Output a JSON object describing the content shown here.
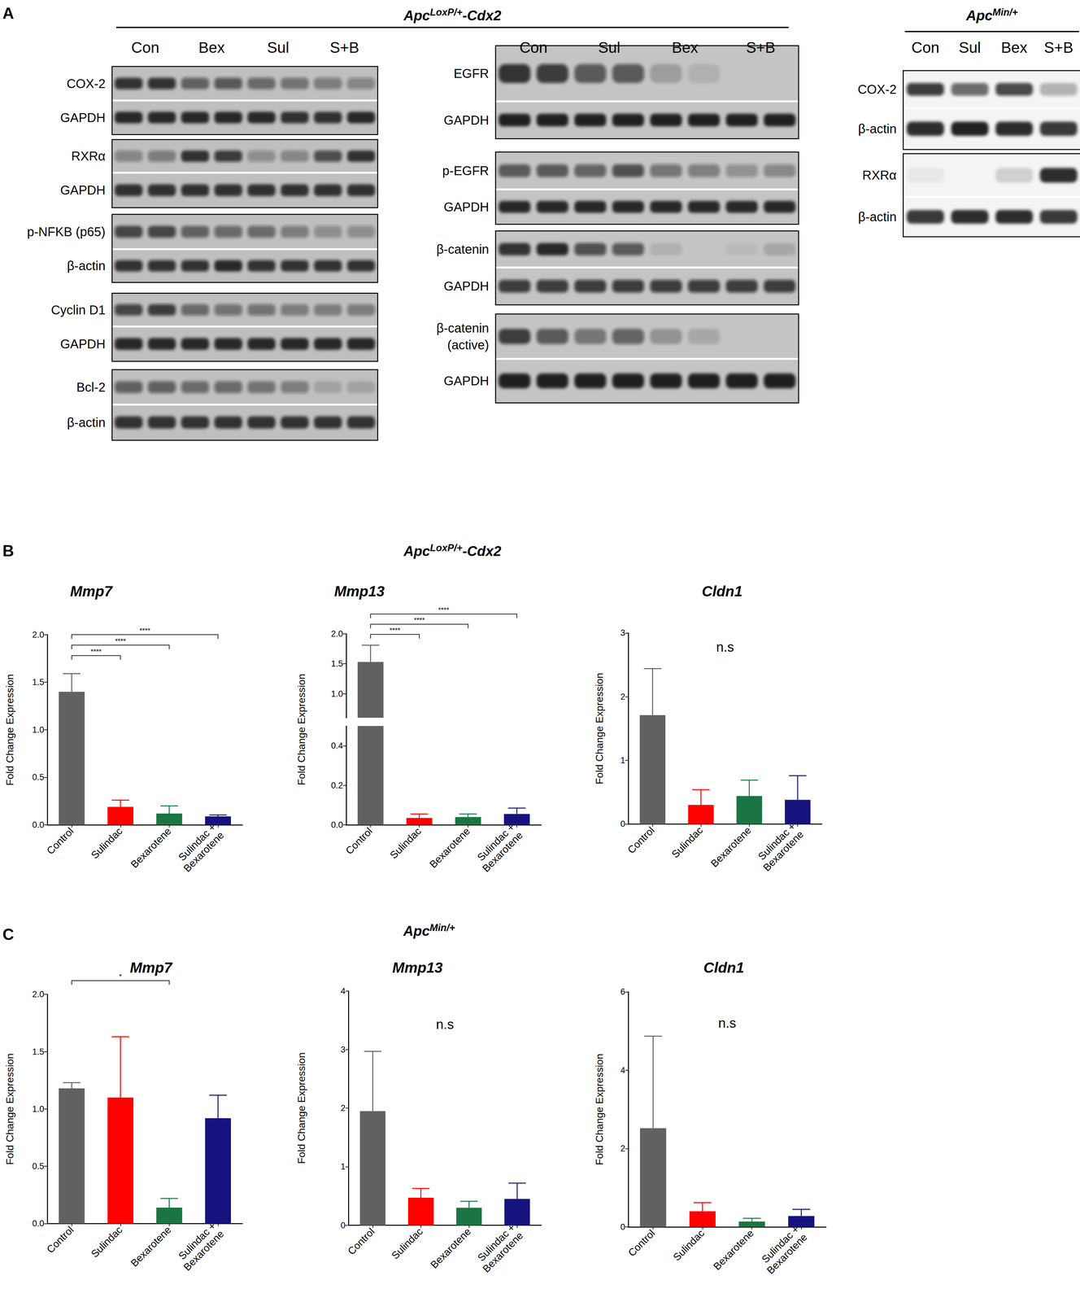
{
  "panel_a": {
    "label": "A",
    "groups": [
      {
        "header": {
          "gene": "Apc",
          "superscript": "LoxP/+",
          "suffix": "-Cdx2"
        },
        "columns": [
          {
            "lanes": [
              "Con",
              "Bex",
              "Sul",
              "S+B"
            ],
            "blots": [
              {
                "rows": [
                  {
                    "label": "COX-2",
                    "intensities": [
                      0.8,
                      0.8,
                      0.55,
                      0.6,
                      0.5,
                      0.45,
                      0.4,
                      0.35
                    ]
                  },
                  {
                    "label": "GAPDH",
                    "intensities": [
                      0.9,
                      0.9,
                      0.9,
                      0.9,
                      0.9,
                      0.85,
                      0.85,
                      0.9
                    ]
                  }
                ]
              },
              {
                "rows": [
                  {
                    "label": "RXRα",
                    "intensities": [
                      0.35,
                      0.4,
                      0.85,
                      0.75,
                      0.3,
                      0.35,
                      0.65,
                      0.85
                    ]
                  },
                  {
                    "label": "GAPDH",
                    "intensities": [
                      0.85,
                      0.85,
                      0.85,
                      0.85,
                      0.85,
                      0.85,
                      0.85,
                      0.85
                    ]
                  }
                ]
              },
              {
                "rows": [
                  {
                    "label": "p-NFKB (p65)",
                    "intensities": [
                      0.7,
                      0.7,
                      0.55,
                      0.5,
                      0.5,
                      0.4,
                      0.3,
                      0.3
                    ]
                  },
                  {
                    "label": "β-actin",
                    "intensities": [
                      0.8,
                      0.8,
                      0.8,
                      0.9,
                      0.8,
                      0.8,
                      0.8,
                      0.8
                    ]
                  }
                ]
              },
              {
                "rows": [
                  {
                    "label": "Cyclin D1",
                    "intensities": [
                      0.7,
                      0.75,
                      0.5,
                      0.45,
                      0.45,
                      0.4,
                      0.4,
                      0.4
                    ]
                  },
                  {
                    "label": "GAPDH",
                    "intensities": [
                      0.9,
                      0.9,
                      0.9,
                      0.9,
                      0.9,
                      0.9,
                      0.9,
                      0.9
                    ]
                  }
                ]
              },
              {
                "rows": [
                  {
                    "label": "Bcl-2",
                    "intensities": [
                      0.55,
                      0.55,
                      0.5,
                      0.5,
                      0.45,
                      0.4,
                      0.15,
                      0.15
                    ]
                  },
                  {
                    "label": "β-actin",
                    "intensities": [
                      0.85,
                      0.85,
                      0.85,
                      0.85,
                      0.85,
                      0.85,
                      0.85,
                      0.85
                    ]
                  }
                ]
              }
            ]
          },
          {
            "lanes": [
              "Con",
              "Sul",
              "Bex",
              "S+B"
            ],
            "blots": [
              {
                "rows": [
                  {
                    "label": "EGFR",
                    "intensities": [
                      0.8,
                      0.75,
                      0.6,
                      0.6,
                      0.2,
                      0.1,
                      0,
                      0
                    ]
                  },
                  {
                    "label": "GAPDH",
                    "intensities": [
                      0.95,
                      0.95,
                      0.95,
                      0.95,
                      0.95,
                      0.95,
                      0.95,
                      0.95
                    ]
                  }
                ]
              },
              {
                "rows": [
                  {
                    "label": "p-EGFR",
                    "intensities": [
                      0.6,
                      0.6,
                      0.55,
                      0.65,
                      0.45,
                      0.4,
                      0.3,
                      0.35
                    ]
                  },
                  {
                    "label": "GAPDH",
                    "intensities": [
                      0.9,
                      0.9,
                      0.9,
                      0.9,
                      0.9,
                      0.9,
                      0.9,
                      0.9
                    ]
                  }
                ]
              },
              {
                "rows": [
                  {
                    "label": "β-catenin",
                    "intensities": [
                      0.85,
                      0.9,
                      0.65,
                      0.6,
                      0.1,
                      0,
                      0.05,
                      0.15
                    ]
                  },
                  {
                    "label": "GAPDH",
                    "intensities": [
                      0.75,
                      0.75,
                      0.75,
                      0.75,
                      0.75,
                      0.75,
                      0.75,
                      0.75
                    ]
                  }
                ]
              },
              {
                "rows": [
                  {
                    "label": [
                      "β-catenin",
                      "(active)"
                    ],
                    "intensities": [
                      0.75,
                      0.6,
                      0.45,
                      0.55,
                      0.25,
                      0.15,
                      0,
                      0
                    ]
                  },
                  {
                    "label": "GAPDH",
                    "intensities": [
                      0.95,
                      0.95,
                      0.95,
                      0.95,
                      0.95,
                      0.95,
                      0.95,
                      0.95
                    ]
                  }
                ]
              }
            ]
          }
        ]
      },
      {
        "header": {
          "gene": "Apc",
          "superscript": "Min/+"
        },
        "columns": [
          {
            "lanes": [
              "Con",
              "Sul",
              "Bex",
              "S+B"
            ],
            "blots": [
              {
                "rows": [
                  {
                    "label": "COX-2",
                    "intensities": [
                      0.8,
                      0.6,
                      0.75,
                      0.3
                    ]
                  },
                  {
                    "label": "β-actin",
                    "intensities": [
                      0.9,
                      0.95,
                      0.9,
                      0.85
                    ]
                  }
                ]
              },
              {
                "rows": [
                  {
                    "label": "RXRα",
                    "intensities": [
                      0.05,
                      0,
                      0.15,
                      0.9
                    ]
                  },
                  {
                    "label": "β-actin",
                    "intensities": [
                      0.85,
                      0.9,
                      0.9,
                      0.85
                    ]
                  }
                ]
              }
            ]
          }
        ]
      }
    ]
  },
  "panel_b": {
    "label": "B",
    "header": {
      "gene": "Apc",
      "superscript": "LoxP/+",
      "suffix": "-Cdx2"
    }
  },
  "panel_c": {
    "label": "C",
    "header": {
      "gene": "Apc",
      "superscript": "Min/+"
    }
  },
  "chart_data": [
    {
      "type": "bar",
      "title": "Mmp7",
      "ylabel": "Fold Change Expression",
      "categories": [
        "Control",
        "Sulindac",
        "Bexarotene",
        "Sulindac +\nBexarotene"
      ],
      "values": [
        1.4,
        0.19,
        0.12,
        0.09
      ],
      "errors": [
        0.19,
        0.07,
        0.08,
        0.015
      ],
      "colors": [
        "#616161",
        "#ff0000",
        "#1b7443",
        "#16137f"
      ],
      "ylim": [
        0,
        2.0
      ],
      "yticks": [
        {
          "value": 0,
          "label": "0.0"
        },
        {
          "value": 0.5,
          "label": "0.5"
        },
        {
          "value": 1.0,
          "label": "1.0"
        },
        {
          "value": 1.5,
          "label": "1.5"
        },
        {
          "value": 2.0,
          "label": "2.0"
        }
      ],
      "grid": false,
      "annotations": [
        {
          "text": "****",
          "from": "Control",
          "to": "Sulindac",
          "y": 1.78
        },
        {
          "text": "****",
          "from": "Control",
          "to": "Bexarotene",
          "y": 1.89
        },
        {
          "text": "****",
          "from": "Control",
          "to": "Sulindac +\nBexarotene",
          "y": 2.0
        }
      ]
    },
    {
      "type": "bar",
      "title": "Mmp13",
      "ylabel": "Fold Change Expression",
      "categories": [
        "Control",
        "Sulindac",
        "Bexarotene",
        "Sulindac +\nBexarotene"
      ],
      "values": [
        1.53,
        0.035,
        0.04,
        0.055
      ],
      "errors": [
        0.28,
        0.02,
        0.015,
        0.03
      ],
      "colors": [
        "#616161",
        "#ff0000",
        "#1b7443",
        "#16137f"
      ],
      "ylim": [
        0,
        2.0
      ],
      "ybreak": [
        0.5,
        0.6
      ],
      "yticks": [
        {
          "value": 0,
          "label": "0.0"
        },
        {
          "value": 0.2,
          "label": "0.2"
        },
        {
          "value": 0.4,
          "label": "0.4"
        },
        {
          "value": 1.0,
          "label": "1.0"
        },
        {
          "value": 1.5,
          "label": "1.5"
        },
        {
          "value": 2.0,
          "label": "2.0"
        }
      ],
      "grid": false,
      "annotations": [
        {
          "text": "****",
          "from": "Control",
          "to": "Sulindac",
          "y": 1.99
        },
        {
          "text": "****",
          "from": "Control",
          "to": "Bexarotene",
          "y": 2.16
        },
        {
          "text": "****",
          "from": "Control",
          "to": "Sulindac +\nBexarotene",
          "y": 2.33
        }
      ]
    },
    {
      "type": "bar",
      "title": "Cldn1",
      "ylabel": "Fold Change Expression",
      "categories": [
        "Control",
        "Sulindac",
        "Bexarotene",
        "Sulindac +\nBexarotene"
      ],
      "values": [
        1.71,
        0.3,
        0.44,
        0.38
      ],
      "errors": [
        0.73,
        0.24,
        0.25,
        0.38
      ],
      "colors": [
        "#616161",
        "#ff0000",
        "#1b7443",
        "#16137f"
      ],
      "ylim": [
        0,
        3
      ],
      "yticks": [
        0,
        1,
        2,
        3
      ],
      "grid": false,
      "annotations": [
        {
          "text": "n.s",
          "y": 2.78
        }
      ]
    },
    {
      "type": "bar",
      "title": "Mmp7",
      "ylabel": "Fold Change Expression",
      "categories": [
        "Control",
        "Sulindac",
        "Bexarotene",
        "Sulindac +\nBexarotene"
      ],
      "values": [
        1.18,
        1.1,
        0.14,
        0.92
      ],
      "errors": [
        0.05,
        0.53,
        0.08,
        0.2
      ],
      "colors": [
        "#616161",
        "#ff0000",
        "#1b7443",
        "#16137f"
      ],
      "ylim": [
        0,
        2.0
      ],
      "yticks": [
        {
          "value": 0,
          "label": "0.0"
        },
        {
          "value": 0.5,
          "label": "0.5"
        },
        {
          "value": 1.0,
          "label": "1.0"
        },
        {
          "value": 1.5,
          "label": "1.5"
        },
        {
          "value": 2.0,
          "label": "2.0"
        }
      ],
      "grid": false,
      "annotations": [
        {
          "text": "*",
          "from": "Control",
          "to": "Bexarotene",
          "y": 2.12
        }
      ]
    },
    {
      "type": "bar",
      "title": "Mmp13",
      "ylabel": "Fold Change Expression",
      "categories": [
        "Control",
        "Sulindac",
        "Bexarotene",
        "Sulindac +\nBexarotene"
      ],
      "values": [
        1.95,
        0.47,
        0.3,
        0.45
      ],
      "errors": [
        1.02,
        0.16,
        0.11,
        0.27
      ],
      "colors": [
        "#616161",
        "#ff0000",
        "#1b7443",
        "#16137f"
      ],
      "ylim": [
        0,
        4
      ],
      "yticks": [
        0,
        1,
        2,
        3,
        4
      ],
      "grid": false,
      "annotations": [
        {
          "text": "n.s",
          "y": 3.43
        }
      ]
    },
    {
      "type": "bar",
      "title": "Cldn1",
      "ylabel": "Fold Change Expression",
      "categories": [
        "Control",
        "Sulindac",
        "Bexarotene",
        "Sulindac +\nBexarotene"
      ],
      "values": [
        2.52,
        0.4,
        0.14,
        0.28
      ],
      "errors": [
        2.35,
        0.22,
        0.08,
        0.17
      ],
      "colors": [
        "#616161",
        "#ff0000",
        "#1b7443",
        "#16137f"
      ],
      "ylim": [
        0,
        6
      ],
      "yticks": [
        0,
        2,
        4,
        6
      ],
      "grid": false,
      "annotations": [
        {
          "text": "n.s",
          "y": 5.2
        }
      ]
    }
  ]
}
